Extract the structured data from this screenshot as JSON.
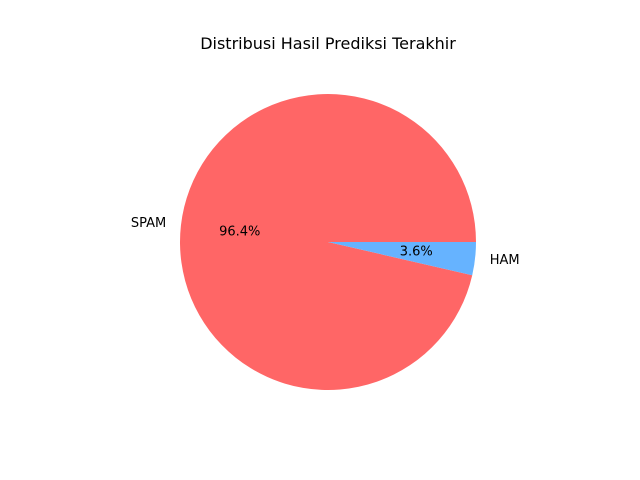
{
  "chart_data": {
    "type": "pie",
    "title": "Distribusi Hasil Prediksi Terakhir",
    "labels": [
      "SPAM",
      "HAM"
    ],
    "values": [
      96.4,
      3.6
    ],
    "percent_labels": [
      "96.4%",
      "3.6%"
    ],
    "colors": [
      "#ff6666",
      "#66b3ff"
    ],
    "legend": "none"
  }
}
